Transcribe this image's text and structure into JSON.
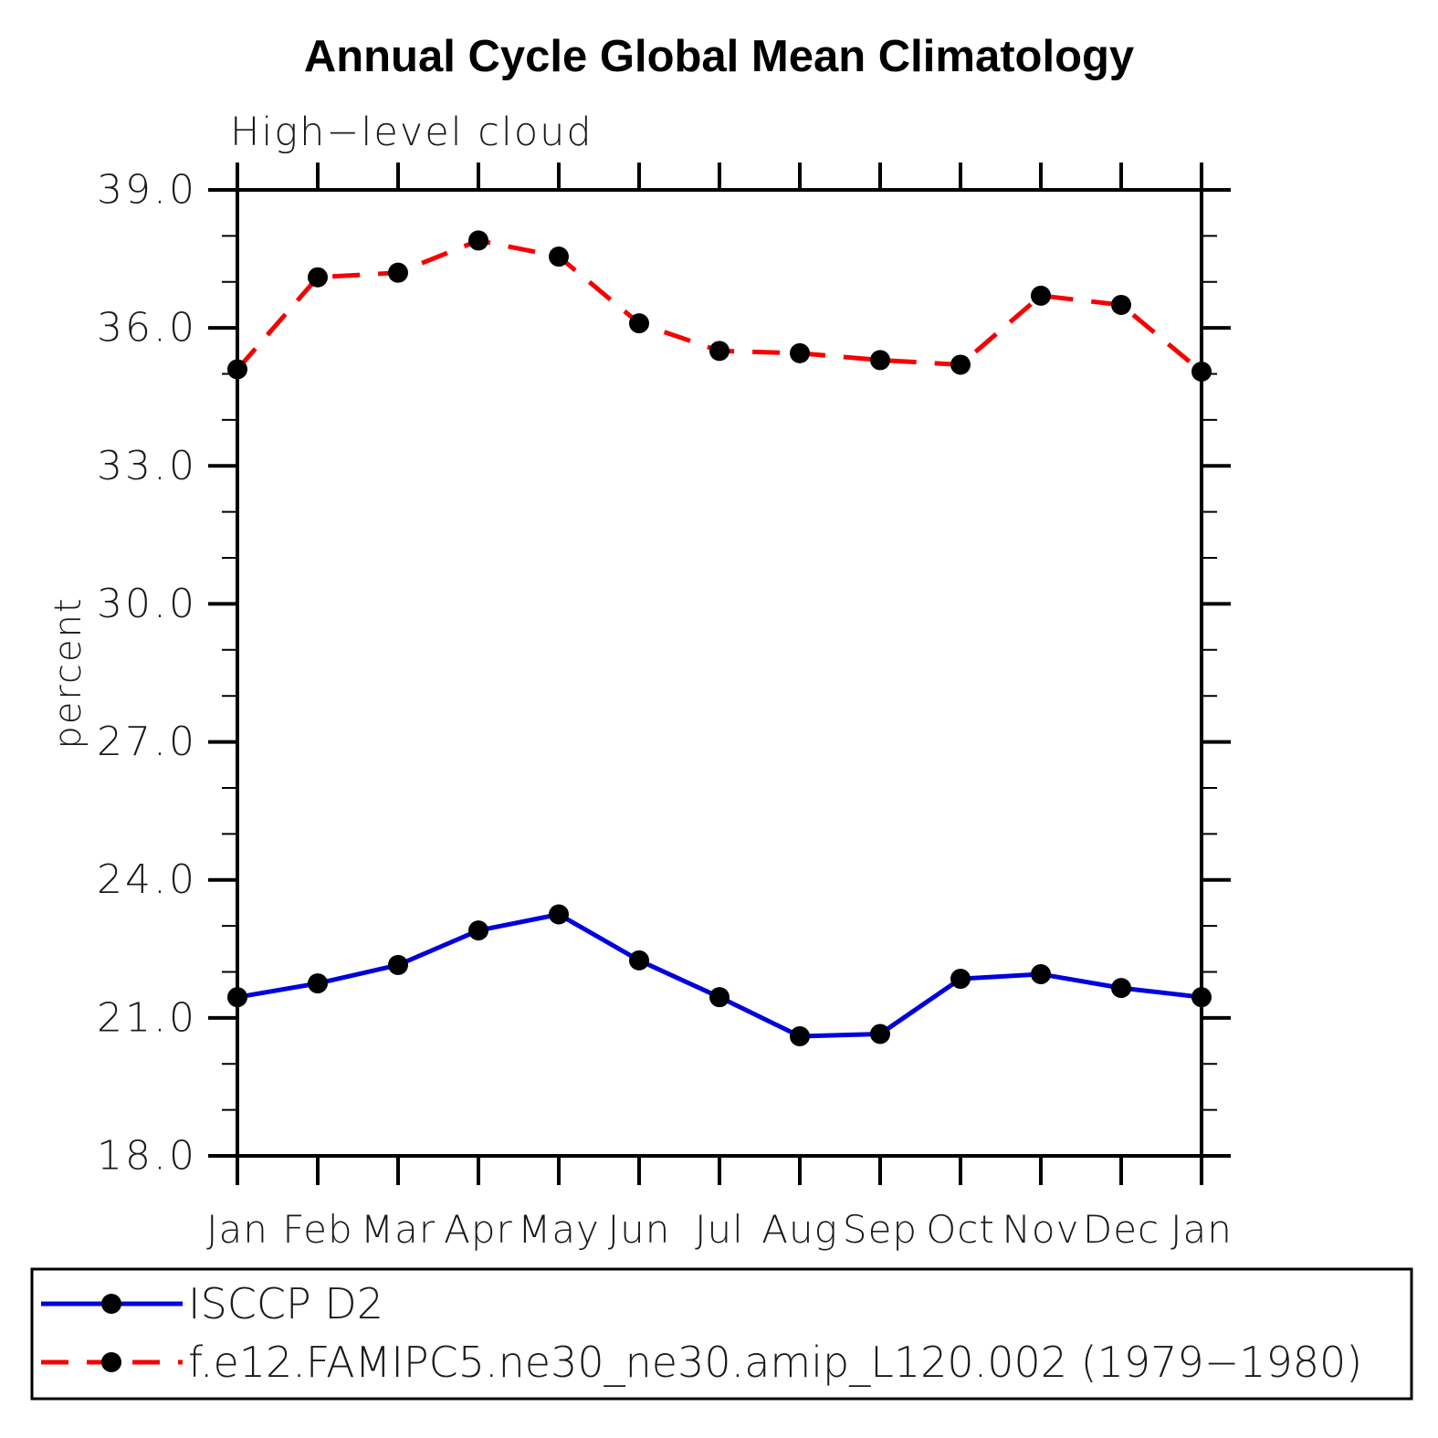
{
  "header": {
    "title": "Annual Cycle Global Mean Climatology",
    "subtitle": "High−level cloud"
  },
  "chart_data": {
    "type": "line",
    "title": "Annual Cycle Global Mean Climatology",
    "subtitle": "High−level cloud",
    "xlabel": "",
    "ylabel": "percent",
    "categories": [
      "Jan",
      "Feb",
      "Mar",
      "Apr",
      "May",
      "Jun",
      "Jul",
      "Aug",
      "Sep",
      "Oct",
      "Nov",
      "Dec",
      "Jan"
    ],
    "ylim": [
      18.0,
      39.0
    ],
    "ytick_major_interval": 3.0,
    "ytick_minor_interval": 1.0,
    "ytick_labels": [
      "39.0",
      "36.0",
      "33.0",
      "30.0",
      "27.0",
      "24.0",
      "21.0",
      "18.0"
    ],
    "grid": false,
    "legend_position": "bottom-box",
    "marker": "filled-circle",
    "marker_color": "#000000",
    "axis_color": "#000000",
    "series": [
      {
        "name": "ISCCP D2",
        "color": "#0000dd",
        "line_style": "solid",
        "values": [
          21.45,
          21.75,
          22.15,
          22.9,
          23.25,
          22.25,
          21.45,
          20.6,
          20.65,
          21.85,
          21.95,
          21.65,
          21.45
        ]
      },
      {
        "name": "f.e12.FAMIPC5.ne30_ne30.amip_L120.002 (1979−1980)",
        "color": "#f80000",
        "line_style": "dashed",
        "values": [
          35.1,
          37.1,
          37.2,
          37.9,
          37.55,
          36.1,
          35.5,
          35.45,
          35.3,
          35.2,
          36.7,
          36.5,
          35.05
        ]
      }
    ]
  }
}
